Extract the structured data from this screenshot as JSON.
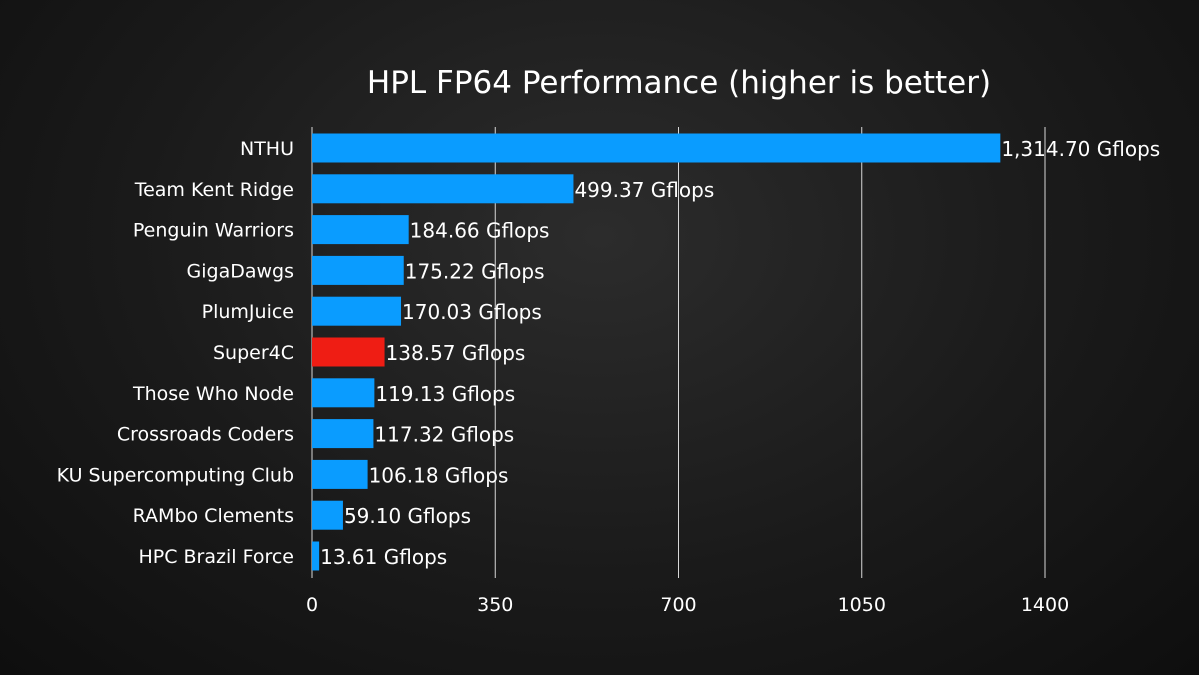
{
  "chart_data": {
    "type": "bar",
    "orientation": "horizontal",
    "title": "HPL FP64 Performance (higher is better)",
    "xlabel": "",
    "ylabel": "",
    "xlim": [
      0,
      1400
    ],
    "x_ticks": [
      0,
      350,
      700,
      1050,
      1400
    ],
    "grid": true,
    "unit_suffix": " Gflops",
    "default_color": "#0a9cff",
    "highlight_color": "#ef1d14",
    "categories": [
      "NTHU",
      "Team Kent Ridge",
      "Penguin Warriors",
      "GigaDawgs",
      "PlumJuice",
      "Super4C",
      "Those Who Node",
      "Crossroads Coders",
      "KU Supercomputing Club",
      "RAMbo Clements",
      "HPC Brazil Force"
    ],
    "values": [
      1314.7,
      499.37,
      184.66,
      175.22,
      170.03,
      138.57,
      119.13,
      117.32,
      106.18,
      59.1,
      13.61
    ],
    "value_labels": [
      "1,314.70 Gflops",
      "499.37 Gflops",
      "184.66 Gflops",
      "175.22 Gflops",
      "170.03 Gflops",
      "138.57 Gflops",
      "119.13 Gflops",
      "117.32 Gflops",
      "106.18 Gflops",
      "59.10 Gflops",
      "13.61 Gflops"
    ],
    "highlighted_category": "Super4C"
  }
}
